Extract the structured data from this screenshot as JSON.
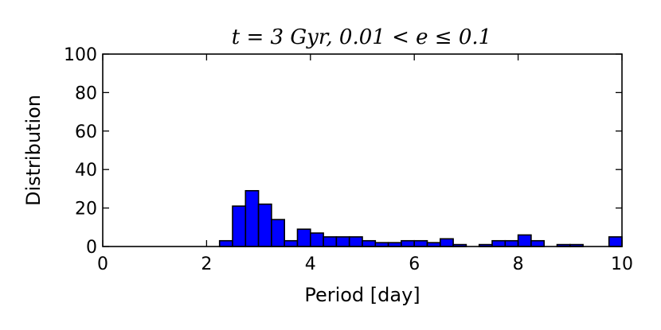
{
  "chart_data": {
    "type": "bar",
    "title": "t = 3 Gyr, 0.01 < e ≤ 0.1",
    "xlabel": "Period [day]",
    "ylabel": "Distribution",
    "xlim": [
      0,
      10
    ],
    "ylim": [
      0,
      100
    ],
    "xticks": [
      "0",
      "2",
      "4",
      "6",
      "8",
      "10"
    ],
    "yticks": [
      "0",
      "20",
      "40",
      "60",
      "80",
      "100"
    ],
    "bin_width": 0.25,
    "bin_starts": [
      2.25,
      2.5,
      2.75,
      3.0,
      3.25,
      3.5,
      3.75,
      4.0,
      4.25,
      4.5,
      4.75,
      5.0,
      5.25,
      5.5,
      5.75,
      6.0,
      6.25,
      6.5,
      6.75,
      7.0,
      7.25,
      7.5,
      7.75,
      8.0,
      8.25,
      8.5,
      8.75,
      9.0,
      9.25,
      9.5,
      9.75
    ],
    "values": [
      3,
      21,
      29,
      22,
      14,
      3,
      9,
      7,
      5,
      5,
      5,
      3,
      2,
      2,
      3,
      3,
      2,
      4,
      1,
      0,
      1,
      3,
      3,
      6,
      3,
      0,
      1,
      1,
      0,
      0,
      5
    ],
    "bar_color": "#0000ff",
    "grid": false
  }
}
